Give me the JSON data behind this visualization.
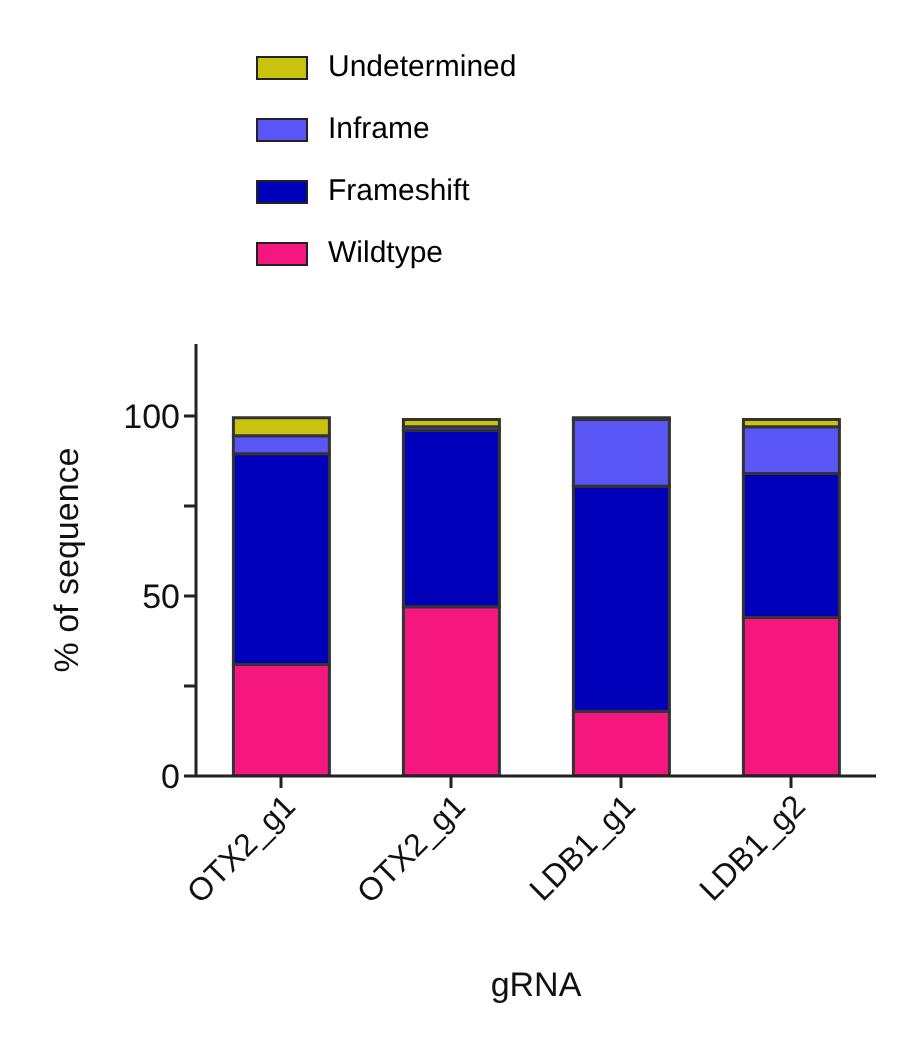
{
  "chart_data": {
    "type": "bar",
    "stacked": true,
    "xlabel": "gRNA",
    "ylabel": "% of sequence",
    "categories": [
      "OTX2_g1",
      "OTX2_g1",
      "LDB1_g1",
      "LDB1_g2"
    ],
    "series": [
      {
        "name": "Wildtype",
        "color": "#f5167e",
        "values": [
          31,
          47,
          18,
          44
        ]
      },
      {
        "name": "Frameshift",
        "color": "#0000bb",
        "values": [
          58.5,
          49,
          62.5,
          40
        ]
      },
      {
        "name": "Inframe",
        "color": "#5a55f5",
        "values": [
          5,
          1,
          18.5,
          13
        ]
      },
      {
        "name": "Undetermined",
        "color": "#c8c40e",
        "values": [
          5,
          2,
          0.5,
          2
        ]
      }
    ],
    "ylim": [
      0,
      120
    ],
    "yticks": [
      0,
      {
        "value": 25,
        "label": null
      },
      50,
      {
        "value": 75,
        "label": null
      },
      100
    ],
    "grid": false,
    "legend": "top"
  }
}
